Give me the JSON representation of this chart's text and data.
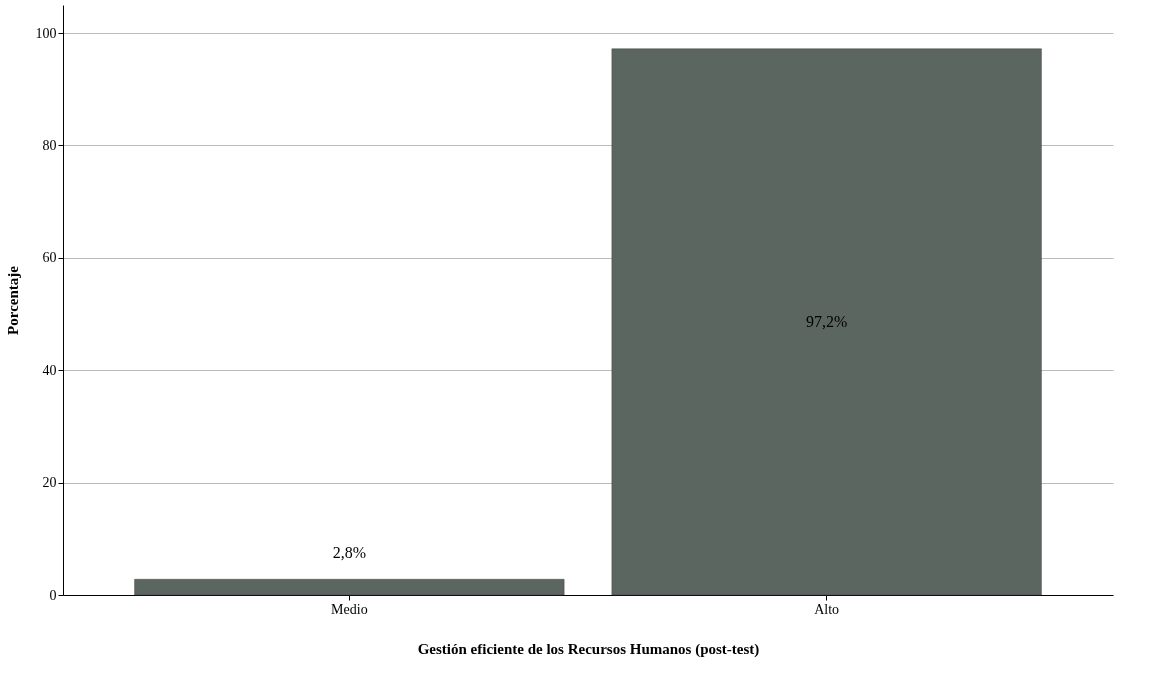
{
  "chart_data": {
    "type": "bar",
    "xlabel": "Gestión eficiente de los Recursos Humanos (post-test)",
    "ylabel": "Porcentaje",
    "categories": [
      "Medio",
      "Alto"
    ],
    "values": [
      2.8,
      97.2
    ],
    "value_labels": [
      "2,8%",
      "97,2%"
    ],
    "color": "#5b6660",
    "ylim": [
      0,
      105
    ],
    "yticks": [
      0,
      20,
      40,
      60,
      80,
      100
    ],
    "grid": "y"
  }
}
